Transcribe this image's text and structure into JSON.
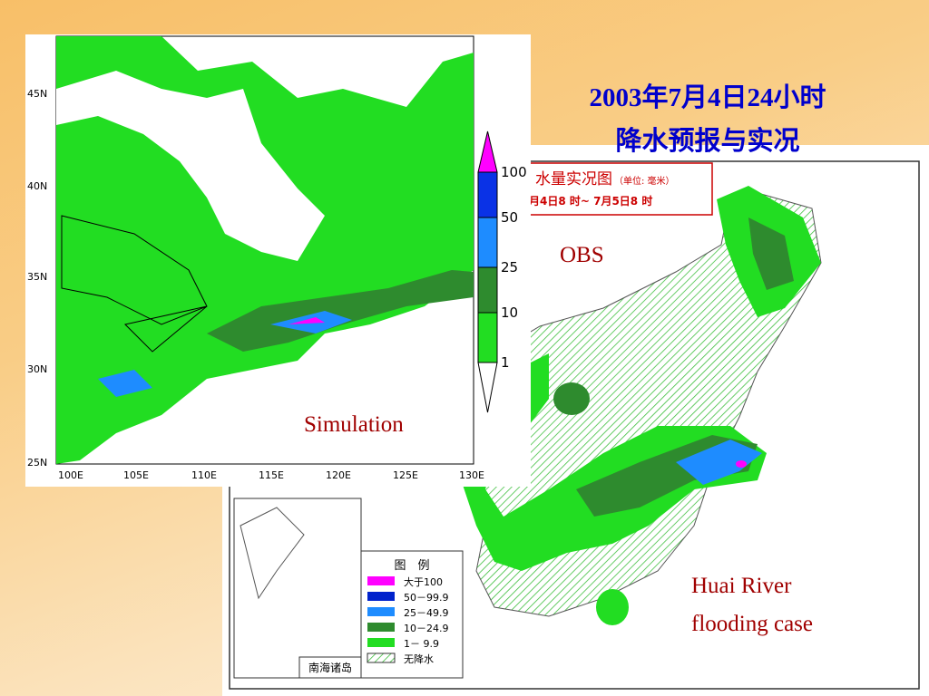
{
  "title": {
    "line1": "2003年7月4日24小时",
    "line2": "降水预报与实况"
  },
  "simulation_map": {
    "label": "Simulation",
    "lat_labels": [
      "45N",
      "40N",
      "35N",
      "30N",
      "25N"
    ],
    "lon_labels": [
      "100E",
      "105E",
      "110E",
      "115E",
      "120E",
      "125E",
      "130E"
    ],
    "colorbar": {
      "labels": [
        "100",
        "50",
        "25",
        "10",
        "1"
      ],
      "colors": [
        "#ff00ff",
        "#0a32e6",
        "#1e8cff",
        "#2e8b2e",
        "#22dd22",
        "#ffffff"
      ]
    }
  },
  "obs_map": {
    "label": "OBS",
    "header_title": "水量实况图",
    "header_unit": "（单位: 毫米）",
    "header_period": "月4日8 时~ 7月5日8 时",
    "inset_label": "南海诸岛",
    "legend": {
      "title": "图　例",
      "entries": [
        {
          "label": "大于100",
          "color": "#ff00ff"
        },
        {
          "label": "50－99.9",
          "color": "#0022cc"
        },
        {
          "label": "25－49.9",
          "color": "#1e8cff"
        },
        {
          "label": "10－24.9",
          "color": "#2e8b2e"
        },
        {
          "label": "1－ 9.9",
          "color": "#22dd22"
        },
        {
          "label": "无降水"
        }
      ]
    }
  },
  "annotation": {
    "line1": "Huai River",
    "line2": "flooding case"
  }
}
